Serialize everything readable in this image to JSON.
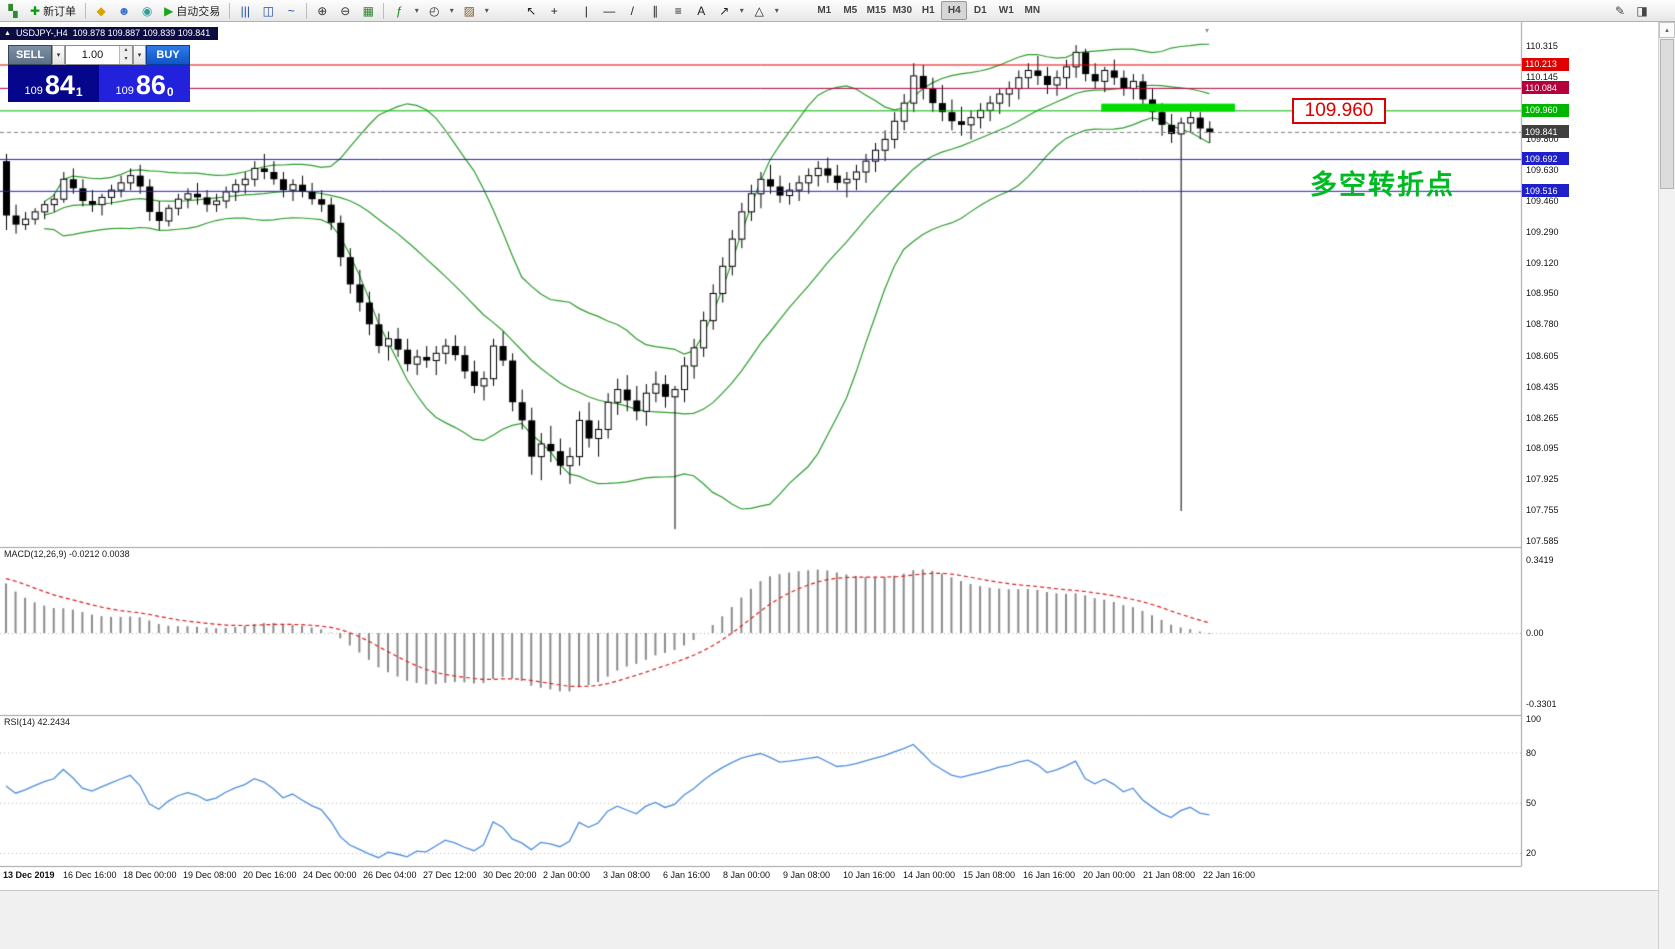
{
  "icons": {
    "caret_down": "▾",
    "caret_up": "▴",
    "title_marker": "▲",
    "shift_marker": "▾",
    "scroll_up": "▴"
  },
  "toolbar": {
    "items": [
      {
        "t": "icon",
        "name": "app-logo-icon",
        "g": "▚",
        "c": "#2e8b2e"
      },
      {
        "t": "btn",
        "name": "new-order-button",
        "g": "✚",
        "gc": "#119911",
        "l": "新订单"
      },
      {
        "t": "sep"
      },
      {
        "t": "icon",
        "name": "market-watch-icon",
        "g": "◆",
        "c": "#d8a400"
      },
      {
        "t": "icon",
        "name": "data-window-icon",
        "g": "☻",
        "c": "#3b6fd4"
      },
      {
        "t": "icon",
        "name": "navigator-icon",
        "g": "◉",
        "c": "#2d9d9d"
      },
      {
        "t": "btn",
        "name": "auto-trading-button",
        "g": "▶",
        "gc": "#18a818",
        "l": "自动交易"
      },
      {
        "t": "sep"
      },
      {
        "t": "icon",
        "name": "bar-chart-icon",
        "g": "|||",
        "c": "#1f4e9e"
      },
      {
        "t": "icon",
        "name": "candlestick-chart-icon",
        "g": "◫",
        "c": "#1f4e9e"
      },
      {
        "t": "icon",
        "name": "line-chart-icon",
        "g": "~",
        "c": "#1f4e9e"
      },
      {
        "t": "sep"
      },
      {
        "t": "icon",
        "name": "zoom-in-icon",
        "g": "⊕",
        "c": "#333333"
      },
      {
        "t": "icon",
        "name": "zoom-out-icon",
        "g": "⊖",
        "c": "#333333"
      },
      {
        "t": "icon",
        "name": "tile-windows-icon",
        "g": "▦",
        "c": "#2e7d32"
      },
      {
        "t": "sep"
      },
      {
        "t": "icon",
        "name": "indicators-icon",
        "g": "ƒ",
        "c": "#0d8a0d"
      },
      {
        "t": "caret"
      },
      {
        "t": "icon",
        "name": "periods-icon",
        "g": "◴",
        "c": "#333333"
      },
      {
        "t": "caret"
      },
      {
        "t": "icon",
        "name": "templates-icon",
        "g": "▨",
        "c": "#7a5c2e"
      },
      {
        "t": "caret"
      },
      {
        "t": "gap",
        "w": 26
      },
      {
        "t": "icon",
        "name": "cursor-icon",
        "g": "↖",
        "c": "#222222"
      },
      {
        "t": "icon",
        "name": "crosshair-icon",
        "g": "+",
        "c": "#222222"
      },
      {
        "t": "gap",
        "w": 8
      },
      {
        "t": "icon",
        "name": "vertical-line-icon",
        "g": "|",
        "c": "#222222"
      },
      {
        "t": "icon",
        "name": "horizontal-line-icon",
        "g": "—",
        "c": "#222222"
      },
      {
        "t": "icon",
        "name": "trendline-icon",
        "g": "/",
        "c": "#222222"
      },
      {
        "t": "icon",
        "name": "channel-icon",
        "g": "∥",
        "c": "#222222"
      },
      {
        "t": "icon",
        "name": "fibonacci-icon",
        "g": "≡",
        "c": "#222222"
      },
      {
        "t": "icon",
        "name": "text-icon",
        "g": "A",
        "c": "#222222"
      },
      {
        "t": "icon",
        "name": "arrows-icon",
        "g": "↗",
        "c": "#222222"
      },
      {
        "t": "caret"
      },
      {
        "t": "icon",
        "name": "shapes-icon",
        "g": "△",
        "c": "#222222"
      },
      {
        "t": "caret"
      }
    ],
    "timeframes": [
      "M1",
      "M5",
      "M15",
      "M30",
      "H1",
      "H4",
      "D1",
      "W1",
      "MN"
    ],
    "active_timeframe": "H4",
    "right_icons": [
      {
        "name": "edit-icon",
        "g": "✎"
      },
      {
        "name": "layout-icon",
        "g": "◨"
      }
    ]
  },
  "chart": {
    "symbol": "USDJPY-,H4",
    "ohlc": "109.878 109.887 109.839 109.841"
  },
  "trade_panel": {
    "sell_label": "SELL",
    "buy_label": "BUY",
    "volume": "1.00",
    "sell_prefix": "109",
    "sell_big": "84",
    "sell_sup": "1",
    "buy_prefix": "109",
    "buy_big": "86",
    "buy_sup": "0"
  },
  "annotations": {
    "price_box": "109.960",
    "turning_point": "多空转折点"
  },
  "axis": {
    "price_ticks": [
      "110.315",
      "110.145",
      "109.800",
      "109.630",
      "109.460",
      "109.290",
      "109.120",
      "108.950",
      "108.780",
      "108.605",
      "108.435",
      "108.265",
      "108.095",
      "107.925",
      "107.755",
      "107.585"
    ],
    "badges": [
      {
        "label": "110.213",
        "price": 110.213,
        "color": "#e00000"
      },
      {
        "label": "110.084",
        "price": 110.084,
        "color": "#b4003c"
      },
      {
        "label": "109.960",
        "price": 109.96,
        "color": "#00b400"
      },
      {
        "label": "109.841",
        "price": 109.841,
        "color": "#404040"
      },
      {
        "label": "109.692",
        "price": 109.692,
        "color": "#2020c8"
      },
      {
        "label": "109.516",
        "price": 109.516,
        "color": "#2020c8"
      }
    ],
    "time_labels": [
      "13 Dec 2019",
      "16 Dec 16:00",
      "18 Dec 00:00",
      "19 Dec 08:00",
      "20 Dec 16:00",
      "24 Dec 00:00",
      "26 Dec 04:00",
      "27 Dec 12:00",
      "30 Dec 20:00",
      "2 Jan 00:00",
      "3 Jan 08:00",
      "6 Jan 16:00",
      "8 Jan 00:00",
      "9 Jan 08:00",
      "10 Jan 16:00",
      "14 Jan 00:00",
      "15 Jan 08:00",
      "16 Jan 16:00",
      "20 Jan 00:00",
      "21 Jan 08:00",
      "22 Jan 16:00"
    ],
    "macd_ticks": [
      {
        "v": 0.3419,
        "label": "0.3419"
      },
      {
        "v": 0,
        "label": "0.00"
      },
      {
        "v": -0.3301,
        "label": "-0.3301"
      }
    ],
    "rsi_ticks": [
      {
        "v": 100,
        "label": "100"
      },
      {
        "v": 80,
        "label": "80"
      },
      {
        "v": 50,
        "label": "50"
      },
      {
        "v": 20,
        "label": "20"
      }
    ]
  },
  "indicators": {
    "macd_label": "MACD(12,26,9) -0.0212 0.0038",
    "rsi_label": "RSI(14) 42.2434"
  },
  "chart_data": {
    "type": "candlestick",
    "symbol": "USDJPY",
    "timeframe": "H4",
    "price_axis_range": [
      107.585,
      110.315
    ],
    "hlines": [
      {
        "price": 110.213,
        "color": "#e00000",
        "style": "solid"
      },
      {
        "price": 110.084,
        "color": "#b4003c",
        "style": "solid"
      },
      {
        "price": 109.96,
        "color": "#00b400",
        "style": "solid"
      },
      {
        "price": 109.841,
        "color": "#808080",
        "style": "dash"
      },
      {
        "price": 109.692,
        "color": "#2020c8",
        "style": "solid"
      },
      {
        "price": 109.516,
        "color": "#2020c8",
        "style": "solid"
      }
    ],
    "green_zone": {
      "i1": 115,
      "i2": 129,
      "price": 109.975,
      "h": 8,
      "color": "#00dc00"
    },
    "bollinger": {
      "period": 20,
      "deviation": 2,
      "color": "#2f9e2f"
    },
    "macd": {
      "fast": 12,
      "slow": 26,
      "signal": 9,
      "values_label": "-0.0212 0.0038",
      "hist_color": "#8c8c8c",
      "signal_color": "#e02020"
    },
    "rsi": {
      "period": 14,
      "value": 42.2434,
      "color": "#4f8fde"
    },
    "candles": [
      [
        109.68,
        109.72,
        109.3,
        109.38
      ],
      [
        109.38,
        109.44,
        109.28,
        109.33
      ],
      [
        109.33,
        109.4,
        109.3,
        109.36
      ],
      [
        109.36,
        109.42,
        109.33,
        109.4
      ],
      [
        109.4,
        109.46,
        109.36,
        109.44
      ],
      [
        109.44,
        109.5,
        109.4,
        109.47
      ],
      [
        109.47,
        109.62,
        109.45,
        109.58
      ],
      [
        109.58,
        109.64,
        109.5,
        109.53
      ],
      [
        109.53,
        109.58,
        109.43,
        109.46
      ],
      [
        109.46,
        109.52,
        109.4,
        109.44
      ],
      [
        109.44,
        109.5,
        109.38,
        109.48
      ],
      [
        109.48,
        109.55,
        109.44,
        109.52
      ],
      [
        109.52,
        109.6,
        109.48,
        109.56
      ],
      [
        109.56,
        109.64,
        109.52,
        109.6
      ],
      [
        109.6,
        109.66,
        109.5,
        109.54
      ],
      [
        109.54,
        109.58,
        109.35,
        109.4
      ],
      [
        109.4,
        109.46,
        109.3,
        109.35
      ],
      [
        109.35,
        109.44,
        109.32,
        109.42
      ],
      [
        109.42,
        109.5,
        109.38,
        109.47
      ],
      [
        109.47,
        109.53,
        109.42,
        109.5
      ],
      [
        109.5,
        109.56,
        109.44,
        109.48
      ],
      [
        109.48,
        109.52,
        109.4,
        109.44
      ],
      [
        109.44,
        109.5,
        109.4,
        109.46
      ],
      [
        109.46,
        109.54,
        109.42,
        109.51
      ],
      [
        109.51,
        109.58,
        109.46,
        109.55
      ],
      [
        109.55,
        109.62,
        109.5,
        109.58
      ],
      [
        109.58,
        109.68,
        109.54,
        109.64
      ],
      [
        109.64,
        109.72,
        109.58,
        109.62
      ],
      [
        109.62,
        109.68,
        109.55,
        109.58
      ],
      [
        109.58,
        109.62,
        109.48,
        109.52
      ],
      [
        109.52,
        109.58,
        109.46,
        109.55
      ],
      [
        109.55,
        109.6,
        109.48,
        109.51
      ],
      [
        109.51,
        109.56,
        109.44,
        109.47
      ],
      [
        109.47,
        109.52,
        109.4,
        109.44
      ],
      [
        109.44,
        109.48,
        109.3,
        109.34
      ],
      [
        109.34,
        109.38,
        109.1,
        109.15
      ],
      [
        109.15,
        109.2,
        108.95,
        109.0
      ],
      [
        109.0,
        109.08,
        108.85,
        108.9
      ],
      [
        108.9,
        108.96,
        108.72,
        108.78
      ],
      [
        108.78,
        108.84,
        108.62,
        108.66
      ],
      [
        108.66,
        108.74,
        108.58,
        108.7
      ],
      [
        108.7,
        108.76,
        108.6,
        108.64
      ],
      [
        108.64,
        108.7,
        108.52,
        108.56
      ],
      [
        108.56,
        108.64,
        108.5,
        108.6
      ],
      [
        108.6,
        108.66,
        108.54,
        108.58
      ],
      [
        108.58,
        108.66,
        108.5,
        108.62
      ],
      [
        108.62,
        108.7,
        108.56,
        108.66
      ],
      [
        108.66,
        108.72,
        108.58,
        108.61
      ],
      [
        108.61,
        108.66,
        108.48,
        108.52
      ],
      [
        108.52,
        108.58,
        108.4,
        108.44
      ],
      [
        108.44,
        108.52,
        108.36,
        108.48
      ],
      [
        108.48,
        108.7,
        108.44,
        108.66
      ],
      [
        108.66,
        108.74,
        108.55,
        108.58
      ],
      [
        108.58,
        108.62,
        108.3,
        108.35
      ],
      [
        108.35,
        108.42,
        108.2,
        108.25
      ],
      [
        108.25,
        108.32,
        107.95,
        108.05
      ],
      [
        108.05,
        108.18,
        107.92,
        108.12
      ],
      [
        108.12,
        108.22,
        108.02,
        108.08
      ],
      [
        108.08,
        108.15,
        107.95,
        108.0
      ],
      [
        108.0,
        108.1,
        107.9,
        108.05
      ],
      [
        108.05,
        108.3,
        108.0,
        108.25
      ],
      [
        108.25,
        108.35,
        108.1,
        108.15
      ],
      [
        108.15,
        108.25,
        108.05,
        108.2
      ],
      [
        108.2,
        108.4,
        108.15,
        108.35
      ],
      [
        108.35,
        108.48,
        108.28,
        108.42
      ],
      [
        108.42,
        108.5,
        108.3,
        108.36
      ],
      [
        108.36,
        108.44,
        108.25,
        108.3
      ],
      [
        108.3,
        108.45,
        108.22,
        108.4
      ],
      [
        108.4,
        108.52,
        108.35,
        108.45
      ],
      [
        108.45,
        108.5,
        108.32,
        108.38
      ],
      [
        108.38,
        108.44,
        107.65,
        108.42
      ],
      [
        108.42,
        108.6,
        108.35,
        108.55
      ],
      [
        108.55,
        108.7,
        108.48,
        108.65
      ],
      [
        108.65,
        108.85,
        108.6,
        108.8
      ],
      [
        108.8,
        109.0,
        108.75,
        108.95
      ],
      [
        108.95,
        109.15,
        108.9,
        109.1
      ],
      [
        109.1,
        109.3,
        109.05,
        109.25
      ],
      [
        109.25,
        109.45,
        109.2,
        109.4
      ],
      [
        109.4,
        109.55,
        109.35,
        109.5
      ],
      [
        109.5,
        109.62,
        109.42,
        109.58
      ],
      [
        109.58,
        109.66,
        109.5,
        109.54
      ],
      [
        109.54,
        109.6,
        109.45,
        109.49
      ],
      [
        109.49,
        109.56,
        109.44,
        109.52
      ],
      [
        109.52,
        109.6,
        109.46,
        109.56
      ],
      [
        109.56,
        109.64,
        109.5,
        109.6
      ],
      [
        109.6,
        109.68,
        109.54,
        109.64
      ],
      [
        109.64,
        109.7,
        109.56,
        109.6
      ],
      [
        109.6,
        109.66,
        109.52,
        109.56
      ],
      [
        109.56,
        109.62,
        109.48,
        109.58
      ],
      [
        109.58,
        109.66,
        109.52,
        109.62
      ],
      [
        109.62,
        109.72,
        109.56,
        109.68
      ],
      [
        109.68,
        109.78,
        109.62,
        109.74
      ],
      [
        109.74,
        109.85,
        109.68,
        109.8
      ],
      [
        109.8,
        109.95,
        109.75,
        109.9
      ],
      [
        109.9,
        110.05,
        109.85,
        110.0
      ],
      [
        110.0,
        110.22,
        109.95,
        110.15
      ],
      [
        110.15,
        110.21,
        110.02,
        110.08
      ],
      [
        110.08,
        110.14,
        109.95,
        110.0
      ],
      [
        110.0,
        110.1,
        109.9,
        109.95
      ],
      [
        109.95,
        110.02,
        109.85,
        109.9
      ],
      [
        109.9,
        109.98,
        109.82,
        109.88
      ],
      [
        109.88,
        109.96,
        109.8,
        109.92
      ],
      [
        109.92,
        110.0,
        109.86,
        109.96
      ],
      [
        109.96,
        110.04,
        109.9,
        110.0
      ],
      [
        110.0,
        110.08,
        109.94,
        110.05
      ],
      [
        110.05,
        110.12,
        109.98,
        110.08
      ],
      [
        110.08,
        110.18,
        110.02,
        110.14
      ],
      [
        110.14,
        110.22,
        110.08,
        110.18
      ],
      [
        110.18,
        110.26,
        110.1,
        110.15
      ],
      [
        110.15,
        110.2,
        110.05,
        110.1
      ],
      [
        110.1,
        110.18,
        110.04,
        110.14
      ],
      [
        110.14,
        110.24,
        110.08,
        110.2
      ],
      [
        110.2,
        110.32,
        110.14,
        110.28
      ],
      [
        110.28,
        110.3,
        110.12,
        110.16
      ],
      [
        110.16,
        110.22,
        110.08,
        110.12
      ],
      [
        110.12,
        110.2,
        110.06,
        110.18
      ],
      [
        110.18,
        110.24,
        110.1,
        110.14
      ],
      [
        110.14,
        110.18,
        110.04,
        110.08
      ],
      [
        110.08,
        110.16,
        110.02,
        110.12
      ],
      [
        110.12,
        110.16,
        109.98,
        110.02
      ],
      [
        110.02,
        110.08,
        109.9,
        109.95
      ],
      [
        109.95,
        110.0,
        109.82,
        109.88
      ],
      [
        109.88,
        109.94,
        109.78,
        109.83
      ],
      [
        109.83,
        109.92,
        107.75,
        109.89
      ],
      [
        109.89,
        109.96,
        109.84,
        109.92
      ],
      [
        109.92,
        109.95,
        109.8,
        109.86
      ],
      [
        109.86,
        109.9,
        109.78,
        109.84
      ]
    ]
  }
}
